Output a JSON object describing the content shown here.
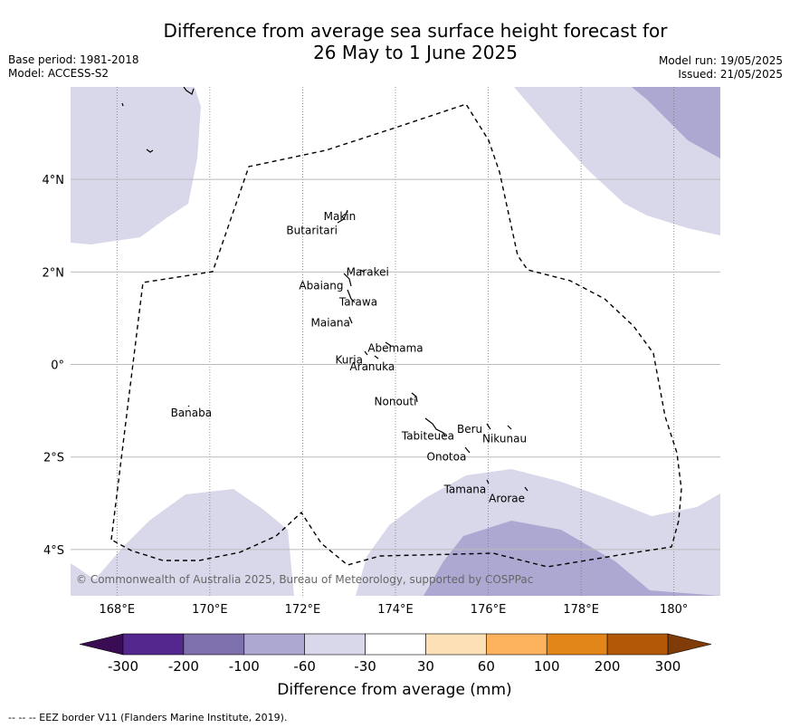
{
  "title": {
    "line1": "Difference from average sea surface height forecast for",
    "line2": "26 May to 1 June 2025"
  },
  "meta_left": {
    "base_period": "Base period: 1981-2018",
    "model": "Model: ACCESS-S2"
  },
  "meta_right": {
    "model_run": "Model run: 19/05/2025",
    "issued": "Issued: 21/05/2025"
  },
  "map": {
    "lon_range": [
      167,
      181
    ],
    "lat_range": [
      -5,
      6
    ],
    "lon_ticks": [
      {
        "value": 168,
        "label": "168°E"
      },
      {
        "value": 170,
        "label": "170°E"
      },
      {
        "value": 172,
        "label": "172°E"
      },
      {
        "value": 174,
        "label": "174°E"
      },
      {
        "value": 176,
        "label": "176°E"
      },
      {
        "value": 178,
        "label": "178°E"
      },
      {
        "value": 180,
        "label": "180°"
      }
    ],
    "lat_ticks": [
      {
        "value": 4,
        "label": "4°N"
      },
      {
        "value": 2,
        "label": "2°N"
      },
      {
        "value": 0,
        "label": "0°"
      },
      {
        "value": -2,
        "label": "2°S"
      },
      {
        "value": -4,
        "label": "4°S"
      }
    ],
    "places": [
      {
        "name": "Makin",
        "lon": 172.8,
        "lat": 3.2
      },
      {
        "name": "Butaritari",
        "lon": 172.2,
        "lat": 2.9
      },
      {
        "name": "Marakei",
        "lon": 173.4,
        "lat": 2.0
      },
      {
        "name": "Abaiang",
        "lon": 172.4,
        "lat": 1.7
      },
      {
        "name": "Tarawa",
        "lon": 173.2,
        "lat": 1.35
      },
      {
        "name": "Maiana",
        "lon": 172.6,
        "lat": 0.9
      },
      {
        "name": "Abemama",
        "lon": 174.0,
        "lat": 0.35
      },
      {
        "name": "Kuria",
        "lon": 173.0,
        "lat": 0.1
      },
      {
        "name": "Aranuka",
        "lon": 173.5,
        "lat": -0.05
      },
      {
        "name": "Nonouti",
        "lon": 174.0,
        "lat": -0.8
      },
      {
        "name": "Banaba",
        "lon": 169.6,
        "lat": -1.05
      },
      {
        "name": "Beru",
        "lon": 175.6,
        "lat": -1.4
      },
      {
        "name": "Nikunau",
        "lon": 176.35,
        "lat": -1.6
      },
      {
        "name": "Tabiteuea",
        "lon": 174.7,
        "lat": -1.55
      },
      {
        "name": "Onotoa",
        "lon": 175.1,
        "lat": -2.0
      },
      {
        "name": "Tamana",
        "lon": 175.5,
        "lat": -2.7
      },
      {
        "name": "Arorae",
        "lon": 176.4,
        "lat": -2.9
      }
    ],
    "copyright": "© Commonwealth of Australia 2025, Bureau of Meteorology, supported by COSPPac"
  },
  "colorbar": {
    "title": "Difference from average (mm)",
    "labels": [
      "-300",
      "-200",
      "-100",
      "-60",
      "-30",
      "30",
      "60",
      "100",
      "200",
      "300"
    ],
    "colors": [
      "#54278f",
      "#7e70ac",
      "#ada8d1",
      "#d8d8ea",
      "#ffffff",
      "#fee0b6",
      "#fdb25e",
      "#e3861a",
      "#b35806"
    ],
    "under_color": "#3a0c53",
    "over_color": "#7f3b08"
  },
  "footer": "--  --  -- EEZ border V11 (Flanders Marine Institute, 2019)."
}
